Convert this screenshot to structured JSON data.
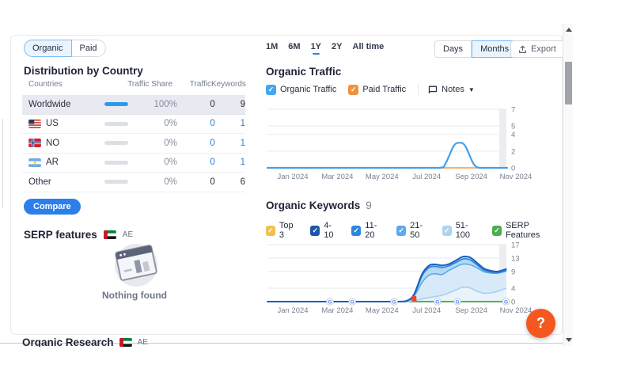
{
  "left": {
    "tabs": [
      {
        "label": "Organic",
        "selected": true
      },
      {
        "label": "Paid",
        "selected": false
      }
    ],
    "title": "Distribution by Country",
    "table": {
      "headers": [
        "Countries",
        "Traffic Share",
        "Traffic",
        "Keywords"
      ],
      "rows": [
        {
          "label": "Worldwide",
          "flag": null,
          "share": "100%",
          "share_pct": 100,
          "traffic": "0",
          "keywords": "9",
          "selected": true,
          "link": false
        },
        {
          "label": "US",
          "flag": "us",
          "share": "0%",
          "share_pct": 0,
          "traffic": "0",
          "keywords": "1",
          "selected": false,
          "link": true
        },
        {
          "label": "NO",
          "flag": "no",
          "share": "0%",
          "share_pct": 0,
          "traffic": "0",
          "keywords": "1",
          "selected": false,
          "link": true
        },
        {
          "label": "AR",
          "flag": "ar",
          "share": "0%",
          "share_pct": 0,
          "traffic": "0",
          "keywords": "1",
          "selected": false,
          "link": true
        },
        {
          "label": "Other",
          "flag": null,
          "share": "0%",
          "share_pct": 0,
          "traffic": "0",
          "keywords": "6",
          "selected": false,
          "link": false
        }
      ]
    },
    "compare_button": "Compare",
    "serp": {
      "title": "SERP features",
      "flag": "ae",
      "flag_label": "AE",
      "empty_text": "Nothing found"
    }
  },
  "right": {
    "time_tabs": [
      {
        "label": "1M",
        "active": false
      },
      {
        "label": "6M",
        "active": false
      },
      {
        "label": "1Y",
        "active": true
      },
      {
        "label": "2Y",
        "active": false
      },
      {
        "label": "All time",
        "active": false
      }
    ],
    "granularity": [
      {
        "label": "Days",
        "selected": false
      },
      {
        "label": "Months",
        "selected": true
      }
    ],
    "export_label": "Export",
    "organic_traffic": {
      "title": "Organic Traffic",
      "legend": [
        {
          "label": "Organic Traffic",
          "color": "#45A5EE",
          "checked": true
        },
        {
          "label": "Paid Traffic",
          "color": "#F0913C",
          "checked": true
        }
      ],
      "notes_label": "Notes"
    },
    "organic_keywords": {
      "title": "Organic Keywords",
      "count": "9",
      "legend": [
        {
          "label": "Top 3",
          "color": "#F3C04C",
          "checked": true
        },
        {
          "label": "4-10",
          "color": "#1E55A9",
          "checked": true
        },
        {
          "label": "11-20",
          "color": "#2E86DC",
          "checked": true
        },
        {
          "label": "21-50",
          "color": "#5FA9EA",
          "checked": true
        },
        {
          "label": "51-100",
          "color": "#ABD3F2",
          "checked": true
        },
        {
          "label": "SERP Features",
          "color": "#4CAE4F",
          "checked": true
        }
      ]
    }
  },
  "bottom": {
    "next_section_title": "Organic Research",
    "flag": "ae",
    "flag_label": "AE"
  },
  "help_label": "?",
  "colors": {
    "accent_blue": "#2B7FEB",
    "link_blue": "#2D7FD8",
    "grid": "#E7E9ED",
    "band": "#ECEDF1",
    "green_line": "#55B24F",
    "flag_marker_red": "#E8483F"
  },
  "chart_data": [
    {
      "type": "line",
      "title": "Organic Traffic",
      "xlabel": "",
      "ylabel": "",
      "x_unit": "months since Jan 2024",
      "xticks": [
        "Jan 2024",
        "Mar 2024",
        "May 2024",
        "Jul 2024",
        "Sep 2024",
        "Nov 2024"
      ],
      "ylim": [
        0,
        7
      ],
      "yticks": [
        0,
        2,
        4,
        5,
        7
      ],
      "grid": true,
      "legend_position": "top",
      "series": [
        {
          "name": "Organic Traffic",
          "color": "#41A0EA",
          "width": 2.2,
          "points": [
            [
              -0.2,
              0
            ],
            [
              3,
              0
            ],
            [
              6,
              0
            ],
            [
              7.2,
              0
            ],
            [
              7.45,
              0.5
            ],
            [
              7.8,
              2.6
            ],
            [
              8.05,
              3
            ],
            [
              8.3,
              2.6
            ],
            [
              8.65,
              0.5
            ],
            [
              8.9,
              0
            ],
            [
              9.3,
              0
            ],
            [
              10.1,
              0
            ]
          ]
        },
        {
          "name": "Paid Traffic",
          "color": "#F6A55F",
          "width": 1.8,
          "points": [
            [
              -0.2,
              0
            ],
            [
              5,
              0
            ],
            [
              10.1,
              0
            ]
          ]
        }
      ]
    },
    {
      "type": "area",
      "title": "Organic Keywords",
      "xlabel": "",
      "ylabel": "",
      "x_unit": "months since Jan 2024",
      "xticks": [
        "Jan 2024",
        "Mar 2024",
        "May 2024",
        "Jul 2024",
        "Sep 2024",
        "Nov 2024"
      ],
      "ylim": [
        0,
        17
      ],
      "yticks": [
        0,
        4,
        9,
        13,
        17
      ],
      "grid": true,
      "legend_position": "top",
      "series": [
        {
          "name": "4-10",
          "color": "#1A5FBF",
          "width": 2,
          "points": [
            [
              -0.2,
              0
            ],
            [
              2,
              0
            ],
            [
              4,
              0
            ],
            [
              5.4,
              0
            ],
            [
              5.8,
              0.3
            ],
            [
              6.1,
              2.2
            ],
            [
              6.45,
              8.3
            ],
            [
              6.75,
              10.8
            ],
            [
              7.0,
              11.1
            ],
            [
              7.3,
              10.8
            ],
            [
              7.6,
              11.2
            ],
            [
              7.9,
              12.3
            ],
            [
              8.2,
              13.4
            ],
            [
              8.5,
              13.2
            ],
            [
              8.8,
              11.6
            ],
            [
              9.1,
              9.9
            ],
            [
              9.4,
              9.2
            ],
            [
              9.7,
              9.0
            ],
            [
              10.05,
              9.7
            ]
          ]
        },
        {
          "name": "11-20",
          "color": "#2F86DC",
          "width": 1.8,
          "points": [
            [
              -0.2,
              0
            ],
            [
              2,
              0
            ],
            [
              4,
              0
            ],
            [
              5.4,
              0
            ],
            [
              5.8,
              0.25
            ],
            [
              6.1,
              2.0
            ],
            [
              6.45,
              7.8
            ],
            [
              6.75,
              10.2
            ],
            [
              7.0,
              10.5
            ],
            [
              7.3,
              10.2
            ],
            [
              7.6,
              10.7
            ],
            [
              7.9,
              11.7
            ],
            [
              8.2,
              12.7
            ],
            [
              8.5,
              12.5
            ],
            [
              8.8,
              11.0
            ],
            [
              9.1,
              9.4
            ],
            [
              9.4,
              8.8
            ],
            [
              9.7,
              8.6
            ],
            [
              10.05,
              9.3
            ]
          ]
        },
        {
          "name": "21-50",
          "color": "#5FA8E6",
          "width": 1.6,
          "points": [
            [
              -0.2,
              0
            ],
            [
              2,
              0
            ],
            [
              4,
              0
            ],
            [
              5.4,
              0
            ],
            [
              5.8,
              0.2
            ],
            [
              6.1,
              1.6
            ],
            [
              6.45,
              5.8
            ],
            [
              6.75,
              7.9
            ],
            [
              7.0,
              8.3
            ],
            [
              7.3,
              8.1
            ],
            [
              7.6,
              9.3
            ],
            [
              7.9,
              10.4
            ],
            [
              8.2,
              11.2
            ],
            [
              8.5,
              11.0
            ],
            [
              8.8,
              10.1
            ],
            [
              9.1,
              8.9
            ],
            [
              9.4,
              8.5
            ],
            [
              9.7,
              8.5
            ],
            [
              10.05,
              9.1
            ]
          ]
        },
        {
          "name": "51-100",
          "color": "#A8D0F0",
          "width": 1.6,
          "points": [
            [
              -0.2,
              0
            ],
            [
              2,
              0
            ],
            [
              4,
              0
            ],
            [
              5.7,
              0
            ],
            [
              6.1,
              0.3
            ],
            [
              6.5,
              0.9
            ],
            [
              6.9,
              1.4
            ],
            [
              7.3,
              1.9
            ],
            [
              7.7,
              2.9
            ],
            [
              8.0,
              3.8
            ],
            [
              8.2,
              4.3
            ],
            [
              8.5,
              4.1
            ],
            [
              8.8,
              3.1
            ],
            [
              9.1,
              2.5
            ],
            [
              9.4,
              2.6
            ],
            [
              9.7,
              3.1
            ],
            [
              10.05,
              4.0
            ]
          ]
        },
        {
          "name": "SERP Features",
          "color": "#55B24F",
          "width": 2,
          "points": [
            [
              -0.2,
              0
            ],
            [
              5,
              0
            ],
            [
              10.05,
              0
            ]
          ]
        },
        {
          "name": "Top 3",
          "color": "#F3C04C",
          "width": 1.6,
          "points": [
            [
              -0.2,
              0
            ],
            [
              5,
              0
            ],
            [
              10.05,
              0
            ]
          ]
        }
      ],
      "bands": [
        {
          "upper": "4-10",
          "lower": "21-50",
          "color": "#B5D8F3"
        },
        {
          "upper": "21-50",
          "lower": "51-100",
          "color": "#D8EAF9"
        },
        {
          "upper": "51-100",
          "lower": null,
          "color": "#E9F3FC"
        }
      ],
      "markers": {
        "google_months": [
          2.48,
          3.44,
          5.24,
          7.1,
          7.96,
          10.05
        ],
        "flag_month": 6.09
      }
    }
  ]
}
